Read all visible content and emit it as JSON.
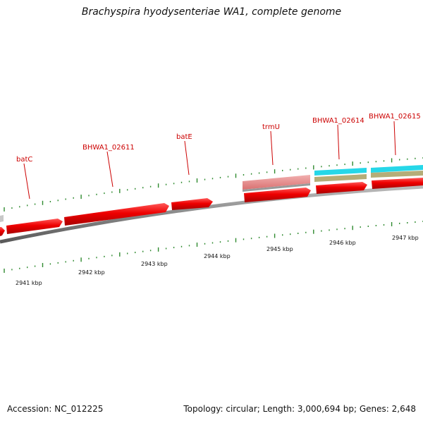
{
  "title": "Brachyspira hyodysenteriae WA1, complete genome",
  "accession": "Accession: NC_012225",
  "topology": "Topology: circular; Length: 3,000,694 bp; Genes: 2,648",
  "colors": {
    "gene": "#ee0000",
    "gene_dark": "#b00000",
    "trna": "#e88a8a",
    "backbone": "#888888",
    "tick": "#2f8a2f",
    "cyan": "#26d7e8",
    "khaki": "#b5ad78",
    "label": "#cc0000"
  },
  "gene_labels": [
    "batC",
    "BHWA1_02611",
    "batE",
    "trmU",
    "BHWA1_02614",
    "BHWA1_02615"
  ],
  "kbp_labels": [
    "2941 kbp",
    "2942 kbp",
    "2943 kbp",
    "2944 kbp",
    "2945 kbp",
    "2946 kbp",
    "2947 kbp"
  ]
}
